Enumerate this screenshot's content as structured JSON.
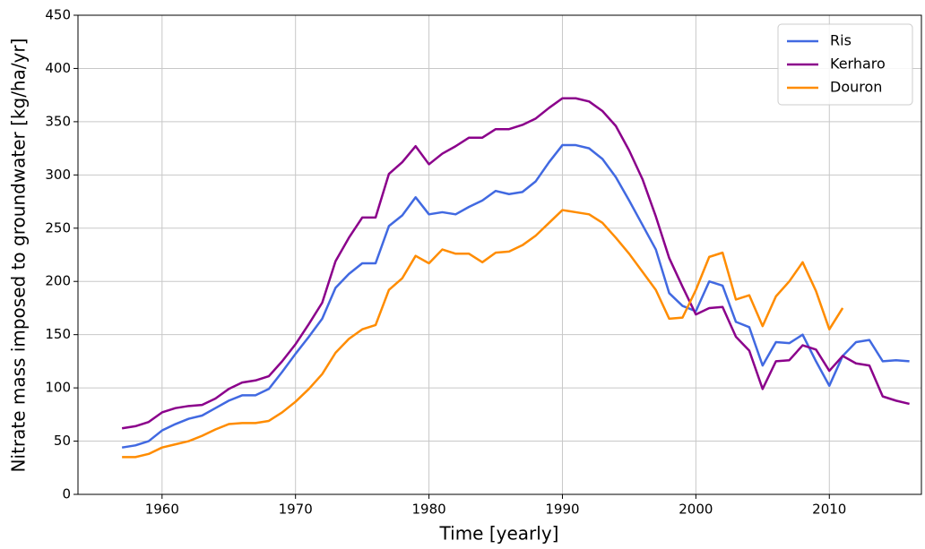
{
  "chart_data": {
    "type": "line",
    "xlabel": "Time [yearly]",
    "ylabel": "Nitrate mass imposed to groundwater [kg/ha/yr]",
    "x": [
      1957,
      1958,
      1959,
      1960,
      1961,
      1962,
      1963,
      1964,
      1965,
      1966,
      1967,
      1968,
      1969,
      1970,
      1971,
      1972,
      1973,
      1974,
      1975,
      1976,
      1977,
      1978,
      1979,
      1980,
      1981,
      1982,
      1983,
      1984,
      1985,
      1986,
      1987,
      1988,
      1989,
      1990,
      1991,
      1992,
      1993,
      1994,
      1995,
      1996,
      1997,
      1998,
      1999,
      2000,
      2001,
      2002,
      2003,
      2004,
      2005,
      2006,
      2007,
      2008,
      2009,
      2010,
      2011,
      2012,
      2013,
      2014,
      2015,
      2016
    ],
    "series": [
      {
        "name": "Ris",
        "color": "#4169e1",
        "values": [
          44,
          46,
          50,
          60,
          66,
          71,
          74,
          81,
          88,
          93,
          93,
          99,
          115,
          132,
          148,
          165,
          194,
          207,
          217,
          217,
          252,
          262,
          279,
          263,
          265,
          263,
          270,
          276,
          285,
          282,
          284,
          294,
          312,
          328,
          328,
          325,
          315,
          298,
          276,
          253,
          230,
          189,
          177,
          172,
          200,
          196,
          162,
          157,
          121,
          143,
          142,
          150,
          125,
          102,
          130,
          143,
          145,
          125,
          126,
          125
        ]
      },
      {
        "name": "Kerharo",
        "color": "#8b008b",
        "values": [
          62,
          64,
          68,
          77,
          81,
          83,
          84,
          90,
          99,
          105,
          107,
          111,
          125,
          141,
          160,
          180,
          219,
          241,
          260,
          260,
          301,
          312,
          327,
          310,
          320,
          327,
          335,
          335,
          343,
          343,
          347,
          353,
          363,
          372,
          372,
          369,
          360,
          346,
          323,
          296,
          261,
          222,
          195,
          169,
          175,
          176,
          148,
          135,
          99,
          125,
          126,
          140,
          136,
          116,
          130,
          123,
          121,
          92,
          88,
          85
        ]
      },
      {
        "name": "Douron",
        "color": "#ff8c00",
        "values": [
          35,
          35,
          38,
          44,
          47,
          50,
          55,
          61,
          66,
          67,
          67,
          69,
          77,
          87,
          99,
          113,
          133,
          146,
          155,
          159,
          192,
          203,
          224,
          217,
          230,
          226,
          226,
          218,
          227,
          228,
          234,
          243,
          255,
          267,
          265,
          263,
          255,
          241,
          226,
          209,
          192,
          165,
          166,
          192,
          223,
          227,
          183,
          187,
          158,
          186,
          200,
          218,
          191,
          155,
          175,
          null,
          null,
          null,
          null,
          null
        ]
      }
    ],
    "xlim": [
      1953.7,
      2016.9
    ],
    "xticks": [
      1960,
      1970,
      1980,
      1990,
      2000,
      2010
    ],
    "ylim": [
      0,
      450
    ],
    "yticks": [
      0,
      50,
      100,
      150,
      200,
      250,
      300,
      350,
      400,
      450
    ],
    "grid": true,
    "legend": "upper right"
  }
}
